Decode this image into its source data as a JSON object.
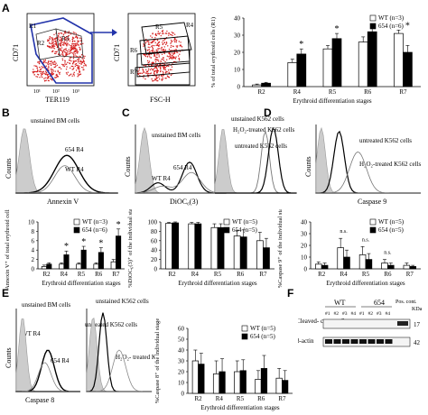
{
  "panel_labels": [
    "A",
    "B",
    "C",
    "D",
    "E",
    "F"
  ],
  "flow_A1": {
    "ylabel": "CD71",
    "xlabel": "TER119",
    "gates": [
      "R1",
      "R2",
      "R3"
    ],
    "xticks": [
      "10¹",
      "10²",
      "10³"
    ],
    "yticks": [
      "10¹",
      "10²",
      "10³"
    ]
  },
  "flow_A2": {
    "ylabel": "CD71",
    "xlabel": "FSC-H",
    "gates": [
      "R4",
      "R5",
      "R6",
      "R7"
    ],
    "yticks": [
      "10¹",
      "10²",
      "10³"
    ]
  },
  "histograms": {
    "B": {
      "ylabel": "Counts",
      "xlabel": "Annexin V",
      "labels": [
        "unstained BM cells",
        "654 R4",
        "WT R4"
      ]
    },
    "C": {
      "ylabel": "Counts",
      "xlabel": "DiOC₆(3)",
      "labels": [
        "unstained BM cells",
        "654 R4",
        "WT R4"
      ]
    },
    "D1": {
      "labels": [
        "unstained K562 cells",
        "H₂O₂-treated K562 cells",
        "untreated K562 cells"
      ]
    },
    "D2": {
      "ylabel": "Counts",
      "xlabel": "Caspase 9",
      "labels": [
        "untreated K562 cells",
        "H₂O₂-treated K562 cells"
      ]
    },
    "E1": {
      "ylabel": "Counts",
      "xlabel": "Caspase 8",
      "labels": [
        "unstained BM cells",
        "WT R4",
        "654 R4"
      ]
    },
    "E2": {
      "labels": [
        "unstained K562 cells",
        "untreated K562 cells",
        "H₂O₂- treated K562 cells"
      ]
    }
  },
  "western": {
    "group_labels": [
      "WT",
      "654"
    ],
    "lanes": [
      "#1",
      "#2",
      "#3",
      "#4",
      "#1",
      "#2",
      "#3",
      "#4"
    ],
    "pos_label": "Pos. cont.",
    "kda_label": "KDa",
    "rows": [
      {
        "name": "Cleaved- caspase 3",
        "kda": "17"
      },
      {
        "name": "β-actin",
        "kda": "42"
      }
    ]
  },
  "chart_data": [
    {
      "id": "A3",
      "type": "bar",
      "categories": [
        "R2",
        "R4",
        "R5",
        "R6",
        "R7"
      ],
      "series": [
        {
          "name": "WT (n=3)",
          "values": [
            1,
            14,
            22,
            26,
            31
          ]
        },
        {
          "name": "654 (n=6)",
          "values": [
            2,
            19,
            28,
            32,
            20
          ]
        }
      ],
      "errors": [
        [
          0.5,
          2,
          2,
          3,
          2
        ],
        [
          0.5,
          3,
          3,
          4,
          4
        ]
      ],
      "significant": [
        false,
        true,
        true,
        true,
        true
      ],
      "xlabel": "Erythroid differentiation stages",
      "ylabel": "% of total erythroid cells (R1)",
      "yticks": [
        "0",
        "10",
        "20",
        "30",
        "40"
      ],
      "ylim": [
        0,
        40
      ]
    },
    {
      "id": "B2",
      "type": "bar",
      "categories": [
        "R2",
        "R4",
        "R5",
        "R6",
        "R7"
      ],
      "series": [
        {
          "name": "WT (n=3)",
          "values": [
            0.5,
            1,
            1,
            1,
            1.5
          ]
        },
        {
          "name": "654 (n=6)",
          "values": [
            1,
            3,
            4,
            3.5,
            7
          ]
        }
      ],
      "errors": [
        [
          0.3,
          0.3,
          0.3,
          0.3,
          0.5
        ],
        [
          0.3,
          0.8,
          0.8,
          1,
          1.5
        ]
      ],
      "significant": [
        false,
        true,
        true,
        true,
        true
      ],
      "xlabel": "Erythroid differentiation stages",
      "ylabel": "% Annexin V⁺ of total erythroid cells (R1)",
      "yticks": [
        "0",
        "2",
        "4",
        "6",
        "8",
        "10"
      ],
      "ylim": [
        0,
        10
      ]
    },
    {
      "id": "C2",
      "type": "bar",
      "categories": [
        "R2",
        "R4",
        "R5",
        "R6",
        "R7"
      ],
      "series": [
        {
          "name": "WT (n=5)",
          "values": [
            97,
            96,
            88,
            70,
            60
          ]
        },
        {
          "name": "654 (n=5)",
          "values": [
            98,
            96,
            88,
            68,
            45
          ]
        }
      ],
      "errors": [
        [
          2,
          3,
          8,
          12,
          18
        ],
        [
          2,
          3,
          8,
          15,
          20
        ]
      ],
      "significant": [
        false,
        false,
        false,
        false,
        false
      ],
      "xlabel": "Erythroid differentiation stages",
      "ylabel": "%DiOC₆(3)⁺ of the individual stage",
      "yticks": [
        "0",
        "20",
        "40",
        "60",
        "80",
        "100"
      ],
      "ylim": [
        0,
        100
      ]
    },
    {
      "id": "D3",
      "type": "bar",
      "categories": [
        "R2",
        "R4",
        "R5",
        "R6",
        "R7"
      ],
      "series": [
        {
          "name": "WT (n=5)",
          "values": [
            4,
            18,
            12,
            5,
            3
          ]
        },
        {
          "name": "654 (n=5)",
          "values": [
            3,
            10,
            8,
            3,
            2
          ]
        }
      ],
      "errors": [
        [
          2,
          8,
          7,
          3,
          2
        ],
        [
          2,
          6,
          5,
          2,
          1
        ]
      ],
      "significant": [
        false,
        false,
        false,
        false,
        false
      ],
      "annotations": [
        "n.s.",
        "n.s.",
        "n.s."
      ],
      "xlabel": "Erythroid differentiation stages",
      "ylabel": "%Caspase 9⁺ of the individual stage",
      "yticks": [
        "0",
        "10",
        "20",
        "30",
        "40"
      ],
      "ylim": [
        0,
        40
      ]
    },
    {
      "id": "E3",
      "type": "bar",
      "categories": [
        "R2",
        "R4",
        "R5",
        "R6",
        "R7"
      ],
      "series": [
        {
          "name": "WT (n=5)",
          "values": [
            30,
            18,
            20,
            13,
            14
          ]
        },
        {
          "name": "654 (n=5)",
          "values": [
            27,
            20,
            21,
            23,
            12
          ]
        }
      ],
      "errors": [
        [
          10,
          12,
          10,
          8,
          9
        ],
        [
          10,
          12,
          10,
          12,
          9
        ]
      ],
      "significant": [
        false,
        false,
        false,
        false,
        false
      ],
      "xlabel": "Erythroid differentiation stages",
      "ylabel": "%Caspase 8⁺ of the individual stage",
      "yticks": [
        "0",
        "10",
        "20",
        "30",
        "40",
        "50",
        "60"
      ],
      "ylim": [
        0,
        60
      ]
    }
  ]
}
